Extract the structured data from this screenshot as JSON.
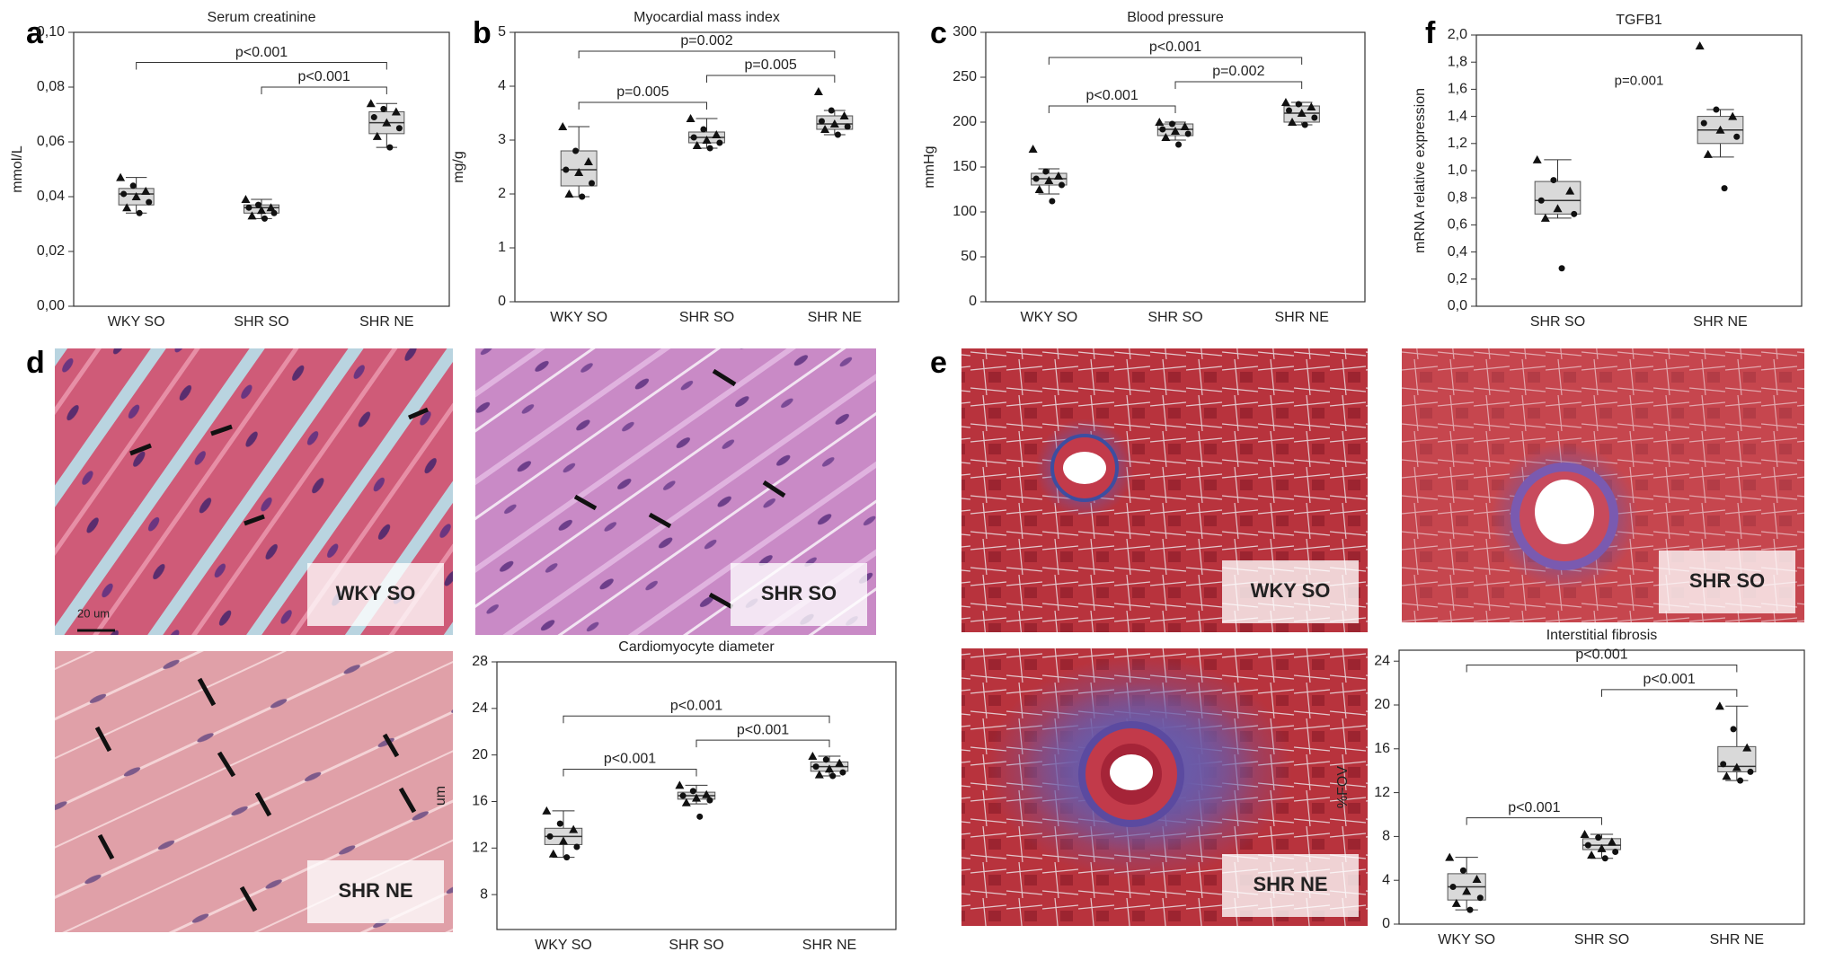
{
  "panels": [
    "a",
    "b",
    "c",
    "f",
    "d",
    "e"
  ],
  "micrographs": [
    {
      "label": "WKY SO",
      "scale_bar": "20 um"
    },
    {
      "label": "SHR SO"
    },
    {
      "label": "SHR NE"
    },
    {
      "label": "WKY SO"
    },
    {
      "label": "SHR SO"
    },
    {
      "label": "SHR NE"
    }
  ],
  "chart_data": [
    {
      "type": "box",
      "title": "Serum creatinine",
      "ylabel": "mmol/L",
      "color": "#d9d9d9",
      "categories": [
        "WKY SO",
        "SHR SO",
        "SHR NE"
      ],
      "ylim": [
        0,
        0.1
      ],
      "yticks": [
        {
          "value": 0,
          "label": "0,00"
        },
        {
          "value": 0.02,
          "label": "0,02"
        },
        {
          "value": 0.04,
          "label": "0,04"
        },
        {
          "value": 0.06,
          "label": "0,06"
        },
        {
          "value": 0.08,
          "label": "0,08"
        },
        {
          "value": 0.1,
          "label": "0,10"
        }
      ],
      "boxes": [
        {
          "whisker_low": 0.034,
          "q1": 0.037,
          "median": 0.041,
          "q3": 0.043,
          "whisker_high": 0.047
        },
        {
          "whisker_low": 0.032,
          "q1": 0.034,
          "median": 0.036,
          "q3": 0.037,
          "whisker_high": 0.039
        },
        {
          "whisker_low": 0.058,
          "q1": 0.063,
          "median": 0.067,
          "q3": 0.071,
          "whisker_high": 0.074
        }
      ],
      "points": [
        [
          0.047,
          0.044,
          0.042,
          0.041,
          0.04,
          0.038,
          0.036,
          0.034
        ],
        [
          0.039,
          0.037,
          0.036,
          0.036,
          0.035,
          0.034,
          0.033,
          0.032
        ],
        [
          0.074,
          0.072,
          0.071,
          0.069,
          0.067,
          0.065,
          0.062,
          0.058
        ]
      ],
      "annotations": [
        {
          "text": "p<0.001",
          "pair": [
            1,
            2
          ]
        },
        {
          "text": "p<0.001",
          "pair": [
            0,
            2
          ]
        }
      ]
    },
    {
      "type": "box",
      "title": "Myocardial mass index",
      "ylabel": "mg/g",
      "color": "#d9d9d9",
      "categories": [
        "WKY SO",
        "SHR SO",
        "SHR NE"
      ],
      "ylim": [
        0,
        5
      ],
      "yticks": [
        0,
        1,
        2,
        3,
        4,
        5
      ],
      "boxes": [
        {
          "whisker_low": 1.95,
          "q1": 2.15,
          "median": 2.45,
          "q3": 2.8,
          "whisker_high": 3.25
        },
        {
          "whisker_low": 2.85,
          "q1": 2.95,
          "median": 3.05,
          "q3": 3.15,
          "whisker_high": 3.4
        },
        {
          "whisker_low": 3.1,
          "q1": 3.2,
          "median": 3.3,
          "q3": 3.45,
          "whisker_high": 3.55
        }
      ],
      "points": [
        [
          3.25,
          2.8,
          2.6,
          2.45,
          2.4,
          2.2,
          2.0,
          1.95
        ],
        [
          3.4,
          3.2,
          3.1,
          3.05,
          3.0,
          2.95,
          2.9,
          2.85
        ],
        [
          3.9,
          3.55,
          3.45,
          3.35,
          3.3,
          3.25,
          3.2,
          3.1
        ]
      ],
      "annotations": [
        {
          "text": "p=0.005",
          "pair": [
            0,
            1
          ]
        },
        {
          "text": "p=0.005",
          "pair": [
            1,
            2
          ]
        },
        {
          "text": "p=0.002",
          "pair": [
            0,
            2
          ]
        }
      ]
    },
    {
      "type": "box",
      "title": "Blood pressure",
      "ylabel": "mmHg",
      "color": "#d9d9d9",
      "categories": [
        "WKY SO",
        "SHR SO",
        "SHR NE"
      ],
      "ylim": [
        0,
        300
      ],
      "yticks": [
        0,
        50,
        100,
        150,
        200,
        250,
        300
      ],
      "boxes": [
        {
          "whisker_low": 120,
          "q1": 130,
          "median": 137,
          "q3": 143,
          "whisker_high": 148
        },
        {
          "whisker_low": 180,
          "q1": 185,
          "median": 192,
          "q3": 198,
          "whisker_high": 200
        },
        {
          "whisker_low": 197,
          "q1": 200,
          "median": 210,
          "q3": 218,
          "whisker_high": 222
        }
      ],
      "points": [
        [
          170,
          145,
          140,
          137,
          135,
          130,
          125,
          112
        ],
        [
          200,
          198,
          195,
          192,
          190,
          187,
          183,
          175
        ],
        [
          222,
          220,
          217,
          213,
          210,
          205,
          200,
          197
        ]
      ],
      "annotations": [
        {
          "text": "p<0.001",
          "pair": [
            0,
            1
          ]
        },
        {
          "text": "p=0.002",
          "pair": [
            1,
            2
          ]
        },
        {
          "text": "p<0.001",
          "pair": [
            0,
            2
          ]
        }
      ]
    },
    {
      "type": "box",
      "title": "TGFB1",
      "ylabel": "mRNA relative expression",
      "color": "#d9d9d9",
      "categories": [
        "SHR SO",
        "SHR NE"
      ],
      "ylim": [
        0,
        2
      ],
      "yticks": [
        {
          "value": 0,
          "label": "0,0"
        },
        {
          "value": 0.2,
          "label": "0,2"
        },
        {
          "value": 0.4,
          "label": "0,4"
        },
        {
          "value": 0.6,
          "label": "0,6"
        },
        {
          "value": 0.8,
          "label": "0,8"
        },
        {
          "value": 1,
          "label": "1,0"
        },
        {
          "value": 1.2,
          "label": "1,2"
        },
        {
          "value": 1.4,
          "label": "1,4"
        },
        {
          "value": 1.6,
          "label": "1,6"
        },
        {
          "value": 1.8,
          "label": "1,8"
        },
        {
          "value": 2,
          "label": "2,0"
        }
      ],
      "boxes": [
        {
          "whisker_low": 0.65,
          "q1": 0.68,
          "median": 0.78,
          "q3": 0.92,
          "whisker_high": 1.08
        },
        {
          "whisker_low": 1.1,
          "q1": 1.2,
          "median": 1.3,
          "q3": 1.4,
          "whisker_high": 1.45
        }
      ],
      "points": [
        [
          1.08,
          0.93,
          0.85,
          0.78,
          0.72,
          0.68,
          0.65,
          0.28
        ],
        [
          1.92,
          1.45,
          1.4,
          1.35,
          1.3,
          1.25,
          1.12,
          0.87
        ]
      ],
      "annotations": [
        {
          "text": "p=0.001"
        }
      ]
    },
    {
      "type": "box",
      "title": "Cardiomyocyte diameter",
      "ylabel": "um",
      "color": "#d9d9d9",
      "categories": [
        "WKY SO",
        "SHR SO",
        "SHR NE"
      ],
      "ylim": [
        5,
        28
      ],
      "yticks": [
        8,
        12,
        16,
        20,
        24,
        28
      ],
      "boxes": [
        {
          "whisker_low": 11.2,
          "q1": 12.3,
          "median": 13,
          "q3": 13.7,
          "whisker_high": 15.2
        },
        {
          "whisker_low": 15.8,
          "q1": 16.2,
          "median": 16.5,
          "q3": 16.8,
          "whisker_high": 17.4
        },
        {
          "whisker_low": 18.2,
          "q1": 18.6,
          "median": 19,
          "q3": 19.4,
          "whisker_high": 19.9
        }
      ],
      "points": [
        [
          15.2,
          14.1,
          13.6,
          13.0,
          12.6,
          12.1,
          11.5,
          11.2
        ],
        [
          17.4,
          16.9,
          16.6,
          16.5,
          16.3,
          16.1,
          15.9,
          14.7
        ],
        [
          19.9,
          19.6,
          19.3,
          19.0,
          18.8,
          18.5,
          18.3,
          18.2
        ]
      ],
      "annotations": [
        {
          "text": "p<0.001",
          "pair": [
            0,
            1
          ]
        },
        {
          "text": "p<0.001",
          "pair": [
            1,
            2
          ]
        },
        {
          "text": "p<0.001",
          "pair": [
            0,
            2
          ]
        }
      ]
    },
    {
      "type": "box",
      "title": "Interstitial fibrosis",
      "ylabel": "%FOV",
      "color": "#d9d9d9",
      "categories": [
        "WKY SO",
        "SHR SO",
        "SHR NE"
      ],
      "ylim": [
        0,
        25
      ],
      "yticks": [
        0,
        4,
        8,
        12,
        16,
        20,
        24
      ],
      "boxes": [
        {
          "whisker_low": 1.3,
          "q1": 2.2,
          "median": 3.4,
          "q3": 4.6,
          "whisker_high": 6.1
        },
        {
          "whisker_low": 6,
          "q1": 6.8,
          "median": 7.2,
          "q3": 7.8,
          "whisker_high": 8.2
        },
        {
          "whisker_low": 13.1,
          "q1": 13.9,
          "median": 14.4,
          "q3": 16.2,
          "whisker_high": 19.9
        }
      ],
      "points": [
        [
          6.1,
          4.9,
          4.1,
          3.4,
          3.0,
          2.4,
          1.9,
          1.3
        ],
        [
          8.2,
          7.9,
          7.5,
          7.2,
          6.9,
          6.6,
          6.3,
          6.0
        ],
        [
          19.9,
          17.8,
          16.1,
          14.6,
          14.3,
          13.9,
          13.5,
          13.1
        ]
      ],
      "annotations": [
        {
          "text": "p<0.001",
          "pair": [
            0,
            1
          ]
        },
        {
          "text": "p<0.001",
          "pair": [
            1,
            2
          ]
        },
        {
          "text": "p<0.001",
          "pair": [
            0,
            2
          ]
        }
      ]
    }
  ]
}
